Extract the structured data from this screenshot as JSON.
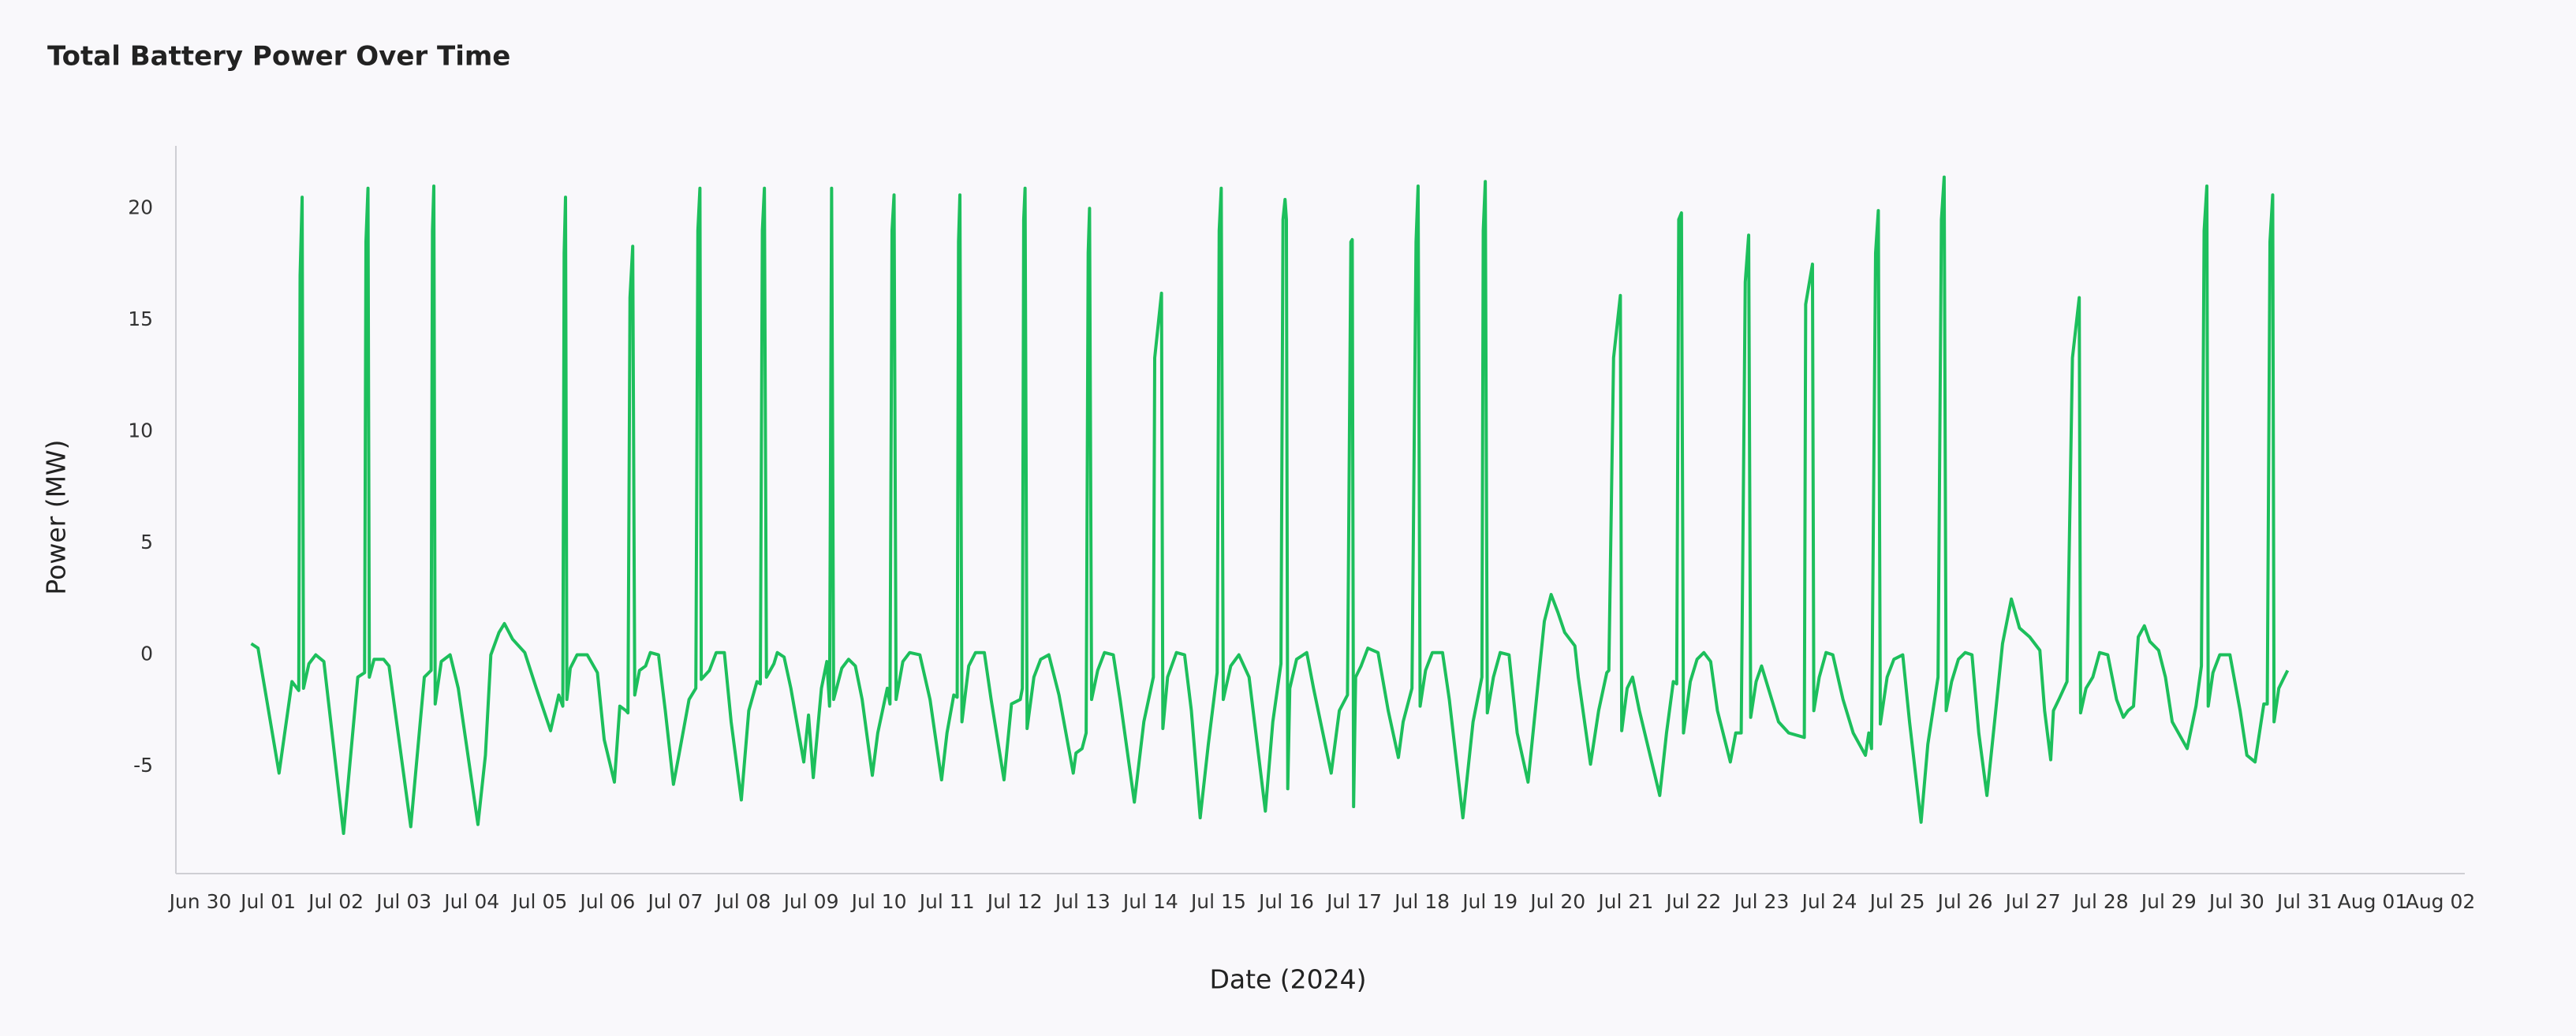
{
  "chart_data": {
    "type": "line",
    "title": "Total Battery Power Over Time",
    "x_label": "Date (2024)",
    "y_label": "Power (MW)",
    "color": "#1dbf5c",
    "xlim": [
      -0.36,
      33.36
    ],
    "ylim": [
      -9.8,
      22.8
    ],
    "yticks": [
      -5,
      0,
      5,
      10,
      15,
      20
    ],
    "xticks": [
      {
        "value": 0,
        "label": "Jun 30"
      },
      {
        "value": 1,
        "label": "Jul 01"
      },
      {
        "value": 2,
        "label": "Jul 02"
      },
      {
        "value": 3,
        "label": "Jul 03"
      },
      {
        "value": 4,
        "label": "Jul 04"
      },
      {
        "value": 5,
        "label": "Jul 05"
      },
      {
        "value": 6,
        "label": "Jul 06"
      },
      {
        "value": 7,
        "label": "Jul 07"
      },
      {
        "value": 8,
        "label": "Jul 08"
      },
      {
        "value": 9,
        "label": "Jul 09"
      },
      {
        "value": 10,
        "label": "Jul 10"
      },
      {
        "value": 11,
        "label": "Jul 11"
      },
      {
        "value": 12,
        "label": "Jul 12"
      },
      {
        "value": 13,
        "label": "Jul 13"
      },
      {
        "value": 14,
        "label": "Jul 14"
      },
      {
        "value": 15,
        "label": "Jul 15"
      },
      {
        "value": 16,
        "label": "Jul 16"
      },
      {
        "value": 17,
        "label": "Jul 17"
      },
      {
        "value": 18,
        "label": "Jul 18"
      },
      {
        "value": 19,
        "label": "Jul 19"
      },
      {
        "value": 20,
        "label": "Jul 20"
      },
      {
        "value": 21,
        "label": "Jul 21"
      },
      {
        "value": 22,
        "label": "Jul 22"
      },
      {
        "value": 23,
        "label": "Jul 23"
      },
      {
        "value": 24,
        "label": "Jul 24"
      },
      {
        "value": 25,
        "label": "Jul 25"
      },
      {
        "value": 26,
        "label": "Jul 26"
      },
      {
        "value": 27,
        "label": "Jul 27"
      },
      {
        "value": 28,
        "label": "Jul 28"
      },
      {
        "value": 29,
        "label": "Jul 29"
      },
      {
        "value": 30,
        "label": "Jul 30"
      },
      {
        "value": 31,
        "label": "Jul 31"
      },
      {
        "value": 32,
        "label": "Aug 01"
      },
      {
        "value": 33,
        "label": "Aug 02"
      }
    ],
    "x": [
      0.75,
      0.85,
      1.16,
      1.35,
      1.45,
      1.47,
      1.5,
      1.52,
      1.6,
      1.7,
      1.82,
      2.11,
      2.32,
      2.42,
      2.44,
      2.47,
      2.49,
      2.56,
      2.7,
      2.78,
      3.1,
      3.3,
      3.4,
      3.42,
      3.44,
      3.46,
      3.55,
      3.68,
      3.8,
      4.09,
      4.2,
      4.28,
      4.4,
      4.48,
      4.6,
      4.78,
      4.95,
      5.16,
      5.28,
      5.34,
      5.36,
      5.38,
      5.4,
      5.45,
      5.55,
      5.7,
      5.85,
      5.95,
      6.1,
      6.18,
      6.27,
      6.3,
      6.33,
      6.37,
      6.4,
      6.47,
      6.56,
      6.63,
      6.75,
      6.85,
      6.97,
      7.05,
      7.2,
      7.3,
      7.33,
      7.36,
      7.38,
      7.5,
      7.6,
      7.72,
      7.82,
      7.97,
      8.08,
      8.2,
      8.25,
      8.28,
      8.31,
      8.34,
      8.45,
      8.5,
      8.6,
      8.7,
      8.89,
      8.96,
      9.03,
      9.15,
      9.23,
      9.27,
      9.3,
      9.33,
      9.45,
      9.55,
      9.65,
      9.75,
      9.9,
      9.98,
      10.12,
      10.16,
      10.19,
      10.22,
      10.25,
      10.35,
      10.45,
      10.6,
      10.75,
      10.92,
      11.0,
      11.1,
      11.15,
      11.17,
      11.19,
      11.22,
      11.32,
      11.42,
      11.55,
      11.65,
      11.84,
      11.95,
      12.08,
      12.11,
      12.13,
      12.15,
      12.18,
      12.28,
      12.38,
      12.5,
      12.65,
      12.86,
      12.9,
      12.99,
      13.05,
      13.08,
      13.1,
      13.13,
      13.22,
      13.32,
      13.45,
      13.55,
      13.76,
      13.9,
      14.04,
      14.06,
      14.16,
      14.18,
      14.25,
      14.38,
      14.5,
      14.6,
      14.73,
      14.85,
      14.98,
      15.01,
      15.04,
      15.07,
      15.18,
      15.3,
      15.45,
      15.69,
      15.8,
      15.92,
      15.95,
      15.98,
      16.0,
      16.02,
      16.05,
      16.15,
      16.3,
      16.4,
      16.66,
      16.78,
      16.9,
      16.95,
      16.97,
      16.99,
      17.02,
      17.1,
      17.2,
      17.35,
      17.5,
      17.65,
      17.72,
      17.85,
      17.91,
      17.94,
      17.97,
      18.05,
      18.15,
      18.3,
      18.4,
      18.6,
      18.75,
      18.88,
      18.9,
      18.93,
      18.96,
      19.05,
      19.15,
      19.28,
      19.4,
      19.56,
      19.7,
      19.8,
      19.9,
      20.0,
      20.1,
      20.25,
      20.3,
      20.48,
      20.6,
      20.72,
      20.75,
      20.82,
      20.92,
      20.94,
      21.02,
      21.1,
      21.2,
      21.5,
      21.6,
      21.7,
      21.75,
      21.78,
      21.82,
      21.85,
      21.95,
      22.05,
      22.15,
      22.25,
      22.35,
      22.54,
      22.62,
      22.7,
      22.76,
      22.81,
      22.84,
      22.92,
      23.0,
      23.1,
      23.25,
      23.4,
      23.63,
      23.65,
      23.75,
      23.77,
      23.85,
      23.95,
      24.05,
      24.2,
      24.35,
      24.53,
      24.58,
      24.62,
      24.68,
      24.72,
      24.75,
      24.85,
      24.95,
      25.08,
      25.18,
      25.35,
      25.45,
      25.6,
      25.65,
      25.69,
      25.72,
      25.8,
      25.9,
      26.0,
      26.1,
      26.2,
      26.32,
      26.45,
      26.55,
      26.68,
      26.8,
      26.95,
      27.1,
      27.17,
      27.26,
      27.3,
      27.38,
      27.5,
      27.58,
      27.68,
      27.7,
      27.78,
      27.88,
      27.98,
      28.1,
      28.23,
      28.33,
      28.4,
      28.48,
      28.55,
      28.64,
      28.72,
      28.85,
      28.95,
      29.05,
      29.27,
      29.4,
      29.48,
      29.52,
      29.56,
      29.58,
      29.65,
      29.75,
      29.9,
      30.05,
      30.15,
      30.27,
      30.4,
      30.45,
      30.49,
      30.53,
      30.55,
      30.62,
      30.7,
      30.75
    ],
    "values": [
      0.5,
      0.3,
      -5.3,
      -1.2,
      -1.6,
      17,
      20.5,
      -1.5,
      -0.4,
      0,
      -0.3,
      -8.0,
      -1.0,
      -0.8,
      18.5,
      20.9,
      -1.0,
      -0.2,
      -0.2,
      -0.5,
      -7.7,
      -1.0,
      -0.7,
      19,
      21.0,
      -2.2,
      -0.3,
      0,
      -1.5,
      -7.6,
      -4.5,
      0,
      1.0,
      1.4,
      0.7,
      0.1,
      -1.5,
      -3.4,
      -1.8,
      -2.3,
      18,
      20.5,
      -2.0,
      -0.6,
      0,
      0,
      -0.8,
      -3.8,
      -5.7,
      -2.3,
      -2.5,
      -2.6,
      16,
      18.3,
      -1.8,
      -0.7,
      -0.5,
      0.1,
      0,
      -2.5,
      -5.8,
      -4.5,
      -2.0,
      -1.5,
      19,
      20.9,
      -1.1,
      -0.7,
      0.1,
      0.1,
      -3.0,
      -6.5,
      -2.5,
      -1.2,
      -1.3,
      19,
      20.9,
      -1.0,
      -0.4,
      0.1,
      -0.1,
      -1.5,
      -4.8,
      -2.7,
      -5.5,
      -1.5,
      -0.3,
      -2.3,
      20.9,
      -2.0,
      -0.6,
      -0.2,
      -0.5,
      -2.0,
      -5.4,
      -3.5,
      -1.5,
      -2.2,
      19,
      20.6,
      -2.0,
      -0.3,
      0.1,
      0,
      -2.0,
      -5.6,
      -3.5,
      -1.8,
      -1.9,
      18.5,
      20.6,
      -3.0,
      -0.5,
      0.1,
      0.1,
      -2,
      -5.6,
      -2.2,
      -2.0,
      -1.5,
      19.5,
      20.9,
      -3.3,
      -1.0,
      -0.2,
      0,
      -1.8,
      -5.3,
      -4.4,
      -4.2,
      -3.5,
      18,
      20.0,
      -2.0,
      -0.7,
      0.1,
      0,
      -2.0,
      -6.6,
      -3.0,
      -1.0,
      13.3,
      16.2,
      -3.3,
      -1.0,
      0.1,
      0,
      -2.5,
      -7.3,
      -4,
      -0.8,
      19,
      20.9,
      -2.0,
      -0.5,
      0,
      -1.0,
      -7.0,
      -3.0,
      -0.4,
      19.5,
      20.4,
      19.5,
      -6.0,
      -1.5,
      -0.2,
      0.1,
      -1.5,
      -5.3,
      -2.5,
      -1.8,
      18.5,
      18.6,
      -6.8,
      -1.0,
      -0.5,
      0.3,
      0.1,
      -2.5,
      -4.6,
      -3,
      -1.5,
      18.5,
      21.0,
      -2.3,
      -0.7,
      0.1,
      0.1,
      -2.0,
      -7.3,
      -3.0,
      -1.0,
      19,
      21.2,
      -2.6,
      -1.0,
      0.1,
      0,
      -3.5,
      -5.7,
      -1.5,
      1.5,
      2.7,
      1.9,
      1.0,
      0.4,
      -1.0,
      -4.9,
      -2.5,
      -0.8,
      -0.7,
      13.3,
      16.1,
      -3.4,
      -1.5,
      -1.0,
      -2.5,
      -6.3,
      -3.5,
      -1.2,
      -1.3,
      19.5,
      19.8,
      -3.5,
      -1.2,
      -0.2,
      0.1,
      -0.3,
      -2.5,
      -4.8,
      -3.5,
      -3.5,
      16.7,
      18.8,
      -2.8,
      -1.2,
      -0.5,
      -1.5,
      -3.0,
      -3.5,
      -3.7,
      15.7,
      17.5,
      -2.5,
      -1.0,
      0.1,
      0,
      -2.0,
      -3.5,
      -4.5,
      -3.5,
      -4.2,
      18,
      19.9,
      -3.1,
      -1.0,
      -0.2,
      0,
      -3,
      -7.5,
      -4,
      -1.0,
      19.5,
      21.4,
      -2.5,
      -1.2,
      -0.2,
      0.1,
      0,
      -3.5,
      -6.3,
      -2.5,
      0.5,
      2.5,
      1.2,
      0.8,
      0.2,
      -2.5,
      -4.7,
      -2.5,
      -2.0,
      -1.2,
      13.3,
      16.0,
      -2.6,
      -1.5,
      -1.0,
      0.1,
      0,
      -2.0,
      -2.8,
      -2.5,
      -2.3,
      0.8,
      1.3,
      0.6,
      0.2,
      -1.0,
      -3.0,
      -4.2,
      -2.3,
      -0.5,
      19,
      21.0,
      -2.3,
      -0.8,
      0,
      0,
      -2.5,
      -4.5,
      -4.8,
      -2.2,
      -2.2,
      18.5,
      20.6,
      -3.0,
      -1.5,
      -1.0,
      -0.7
    ]
  }
}
